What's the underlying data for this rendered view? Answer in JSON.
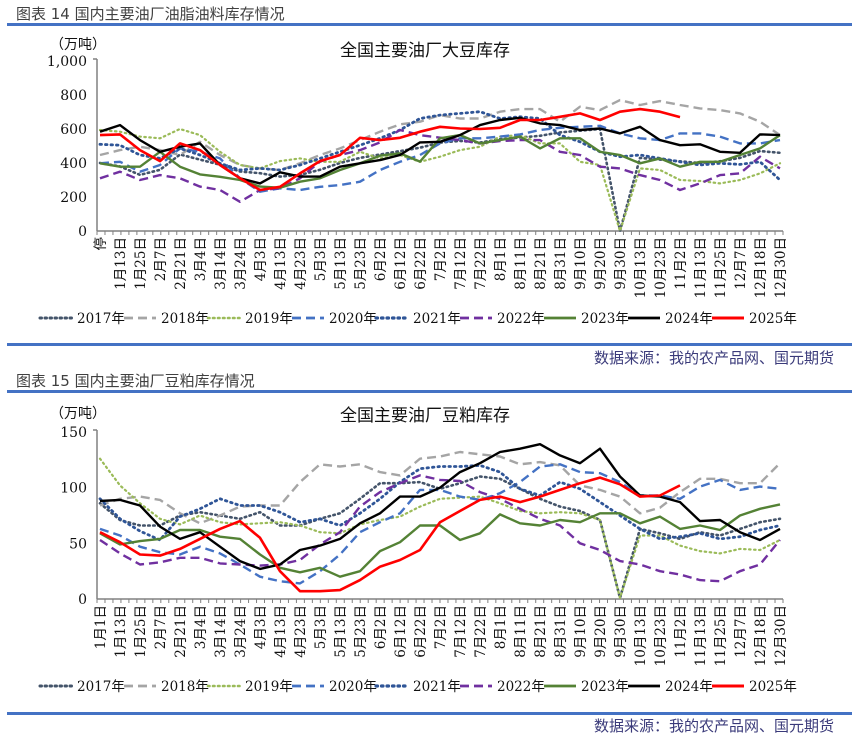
{
  "figure14": {
    "header": "图表 14 国内主要油厂油脂油料库存情况",
    "source": "数据来源：我的农产品网、国元期货"
  },
  "figure15": {
    "header": "图表 15 国内主要油厂豆粕库存情况",
    "source": "数据来源：我的农产品网、国元期货"
  },
  "chart_data": [
    {
      "type": "line",
      "title": "全国主要油厂大豆库存",
      "ylabel": "（万吨）",
      "xlabel": "",
      "ylim": [
        0,
        1000
      ],
      "yticks": [
        "0",
        "200",
        "400",
        "600",
        "800",
        "1,000"
      ],
      "ytick_values": [
        0,
        200,
        400,
        600,
        800,
        1000
      ],
      "grid": false,
      "legend": "bottom",
      "categories": [
        "停",
        "1月13日",
        "1月25日",
        "2月7日",
        "2月21日",
        "3月4日",
        "3月14日",
        "3月24日",
        "4月3日",
        "4月13日",
        "4月23日",
        "5月3日",
        "5月13日",
        "5月23日",
        "6月2日",
        "6月12日",
        "6月22日",
        "7月2日",
        "7月12日",
        "7月22日",
        "8月1日",
        "8月11日",
        "8月21日",
        "8月31日",
        "9月10日",
        "9月20日",
        "9月30日",
        "10月13日",
        "10月23日",
        "11月2日",
        "11月13日",
        "11月25日",
        "12月7日",
        "12月18日",
        "12月30日"
      ],
      "series": [
        {
          "name": "2017年",
          "color": "#44546A",
          "values": [
            400,
            380,
            330,
            360,
            450,
            420,
            390,
            350,
            340,
            320,
            330,
            360,
            400,
            430,
            450,
            470,
            490,
            520,
            530,
            520,
            540,
            550,
            560,
            580,
            590,
            600,
            0,
            430,
            420,
            410,
            400,
            410,
            430,
            470,
            460
          ]
        },
        {
          "name": "2018年",
          "color": "#A5A5A5",
          "values": [
            447,
            476,
            496,
            476,
            447,
            525,
            447,
            388,
            368,
            359,
            398,
            447,
            486,
            535,
            584,
            627,
            643,
            682,
            662,
            662,
            702,
            717,
            717,
            643,
            731,
            711,
            770,
            741,
            764,
            741,
            721,
            711,
            692,
            643,
            564
          ]
        },
        {
          "name": "2019年",
          "color": "#9BBB59",
          "values": [
            594,
            584,
            555,
            545,
            600,
            564,
            466,
            388,
            368,
            411,
            427,
            407,
            407,
            466,
            427,
            447,
            407,
            437,
            476,
            496,
            555,
            564,
            515,
            515,
            407,
            388,
            0,
            368,
            359,
            300,
            294,
            280,
            300,
            339,
            398
          ]
        },
        {
          "name": "2020年",
          "color": "#4472C4",
          "values": [
            398,
            407,
            349,
            388,
            486,
            466,
            427,
            310,
            231,
            251,
            241,
            260,
            270,
            290,
            359,
            407,
            447,
            515,
            545,
            545,
            555,
            568,
            594,
            607,
            613,
            619,
            574,
            545,
            535,
            574,
            574,
            555,
            515,
            515,
            535
          ]
        },
        {
          "name": "2021年",
          "color": "#2F5597",
          "values": [
            510,
            505,
            447,
            427,
            486,
            447,
            398,
            359,
            368,
            359,
            388,
            427,
            466,
            505,
            545,
            594,
            662,
            682,
            692,
            702,
            662,
            672,
            662,
            564,
            525,
            466,
            437,
            447,
            427,
            407,
            388,
            398,
            392,
            407,
            300
          ]
        },
        {
          "name": "2022年",
          "color": "#7030A0",
          "values": [
            310,
            349,
            300,
            329,
            310,
            261,
            241,
            172,
            241,
            251,
            310,
            408,
            447,
            476,
            521,
            594,
            564,
            549,
            535,
            515,
            529,
            535,
            535,
            466,
            447,
            378,
            368,
            329,
            300,
            241,
            280,
            329,
            339,
            437,
            368
          ]
        },
        {
          "name": "2023年",
          "color": "#548235",
          "values": [
            398,
            378,
            378,
            466,
            378,
            333,
            319,
            300,
            261,
            255,
            290,
            310,
            359,
            398,
            443,
            457,
            408,
            545,
            564,
            515,
            535,
            555,
            486,
            545,
            545,
            466,
            447,
            398,
            427,
            378,
            407,
            407,
            447,
            486,
            564
          ]
        },
        {
          "name": "2024年",
          "color": "#000000",
          "values": [
            584,
            623,
            535,
            466,
            496,
            515,
            388,
            310,
            280,
            345,
            320,
            320,
            378,
            398,
            417,
            447,
            521,
            525,
            564,
            623,
            653,
            666,
            633,
            623,
            594,
            603,
            574,
            613,
            535,
            505,
            510,
            466,
            460,
            568,
            564
          ]
        },
        {
          "name": "2025年",
          "color": "#FF0000",
          "values": [
            564,
            568,
            476,
            411,
            515,
            476,
            388,
            310,
            241,
            260,
            339,
            411,
            447,
            548,
            535,
            548,
            584,
            613,
            603,
            600,
            607,
            653,
            653,
            672,
            692,
            653,
            702,
            717,
            702,
            670,
            null,
            null,
            null,
            null,
            null
          ]
        }
      ]
    },
    {
      "type": "line",
      "title": "全国主要油厂豆粕库存",
      "ylabel": "（万吨）",
      "xlabel": "",
      "ylim": [
        0,
        150
      ],
      "yticks": [
        "0",
        "50",
        "100",
        "150"
      ],
      "ytick_values": [
        0,
        50,
        100,
        150
      ],
      "grid": false,
      "legend": "bottom",
      "categories": [
        "1月1日",
        "1月13日",
        "1月25日",
        "2月7日",
        "2月21日",
        "3月4日",
        "3月14日",
        "3月24日",
        "4月3日",
        "4月13日",
        "4月23日",
        "5月3日",
        "5月13日",
        "5月23日",
        "6月2日",
        "6月12日",
        "6月22日",
        "7月2日",
        "7月12日",
        "7月22日",
        "8月1日",
        "8月11日",
        "8月21日",
        "8月31日",
        "9月10日",
        "9月20日",
        "9月30日",
        "10月13日",
        "10月23日",
        "11月2日",
        "11月13日",
        "11月25日",
        "12月7日",
        "12月18日",
        "12月30日"
      ],
      "series": [
        {
          "name": "2017年",
          "color": "#44546A",
          "values": [
            86,
            71,
            66,
            66,
            75,
            78,
            75,
            72,
            78,
            66,
            66,
            72,
            77,
            90,
            104,
            104,
            105,
            99,
            104,
            110,
            108,
            99,
            90,
            83,
            79,
            71,
            1,
            63,
            59,
            54,
            60,
            57,
            63,
            69,
            72
          ]
        },
        {
          "name": "2018年",
          "color": "#A5A5A5",
          "values": [
            84,
            90,
            92,
            89,
            77,
            68,
            75,
            83,
            84,
            84,
            105,
            121,
            119,
            121,
            114,
            111,
            126,
            128,
            132,
            130,
            128,
            121,
            123,
            120,
            102,
            98,
            92,
            77,
            82,
            96,
            108,
            108,
            104,
            104,
            122
          ]
        },
        {
          "name": "2019年",
          "color": "#9BBB59",
          "values": [
            126,
            102,
            86,
            72,
            67,
            75,
            69,
            67,
            68,
            69,
            66,
            60,
            59,
            67,
            71,
            74,
            83,
            90,
            91,
            92,
            86,
            79,
            77,
            78,
            77,
            71,
            1,
            57,
            57,
            48,
            43,
            41,
            45,
            44,
            53
          ]
        },
        {
          "name": "2020年",
          "color": "#4472C4",
          "values": [
            63,
            57,
            47,
            42,
            40,
            47,
            41,
            31,
            20,
            16,
            14,
            25,
            40,
            60,
            69,
            77,
            98,
            98,
            92,
            89,
            95,
            105,
            119,
            121,
            114,
            113,
            105,
            93,
            93,
            90,
            101,
            107,
            98,
            101,
            99
          ]
        },
        {
          "name": "2021年",
          "color": "#2F5597",
          "values": [
            90,
            72,
            61,
            53,
            74,
            81,
            90,
            84,
            84,
            78,
            69,
            72,
            66,
            77,
            90,
            105,
            117,
            119,
            119,
            120,
            114,
            99,
            93,
            105,
            99,
            87,
            75,
            63,
            54,
            56,
            59,
            54,
            56,
            62,
            66
          ]
        },
        {
          "name": "2022年",
          "color": "#7030A0",
          "values": [
            53,
            41,
            31,
            33,
            37,
            37,
            32,
            31,
            30,
            31,
            35,
            49,
            60,
            83,
            96,
            104,
            111,
            107,
            106,
            96,
            90,
            81,
            72,
            66,
            50,
            44,
            34,
            31,
            25,
            22,
            17,
            16,
            25,
            31,
            53
          ]
        },
        {
          "name": "2023年",
          "color": "#548235",
          "values": [
            59,
            49,
            52,
            54,
            62,
            62,
            56,
            54,
            40,
            28,
            24,
            28,
            20,
            25,
            43,
            51,
            66,
            66,
            53,
            59,
            76,
            68,
            66,
            71,
            69,
            77,
            77,
            68,
            74,
            63,
            66,
            62,
            75,
            81,
            85
          ]
        },
        {
          "name": "2024年",
          "color": "#000000",
          "values": [
            88,
            89,
            84,
            65,
            54,
            60,
            47,
            34,
            27,
            31,
            44,
            48,
            54,
            68,
            77,
            92,
            92,
            100,
            114,
            122,
            132,
            135,
            139,
            129,
            122,
            135,
            110,
            93,
            92,
            87,
            70,
            71,
            60,
            53,
            63
          ]
        },
        {
          "name": "2025年",
          "color": "#FF0000",
          "values": [
            60,
            51,
            40,
            39,
            45,
            54,
            63,
            70,
            55,
            25,
            7,
            7,
            8,
            17,
            29,
            35,
            44,
            69,
            79,
            89,
            92,
            87,
            92,
            98,
            104,
            109,
            103,
            92,
            93,
            102,
            null,
            null,
            null,
            null,
            null
          ]
        }
      ]
    }
  ]
}
